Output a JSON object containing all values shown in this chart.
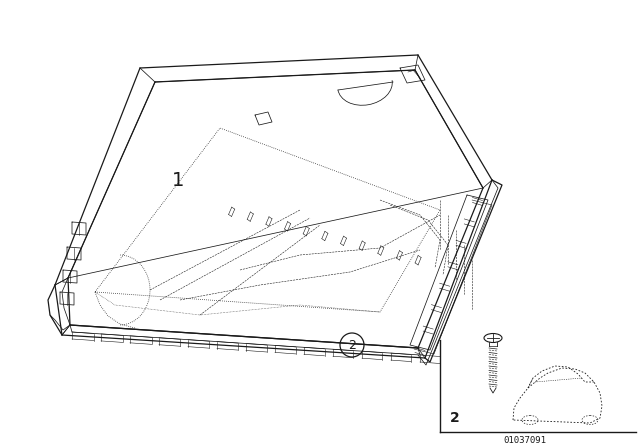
{
  "background_color": "#ffffff",
  "line_color": "#1a1a1a",
  "label1": "1",
  "label2": "2",
  "part_number": "01037091",
  "fig_width": 6.4,
  "fig_height": 4.48,
  "dpi": 100,
  "lw_main": 0.9,
  "lw_thin": 0.55,
  "lw_detail": 0.4
}
